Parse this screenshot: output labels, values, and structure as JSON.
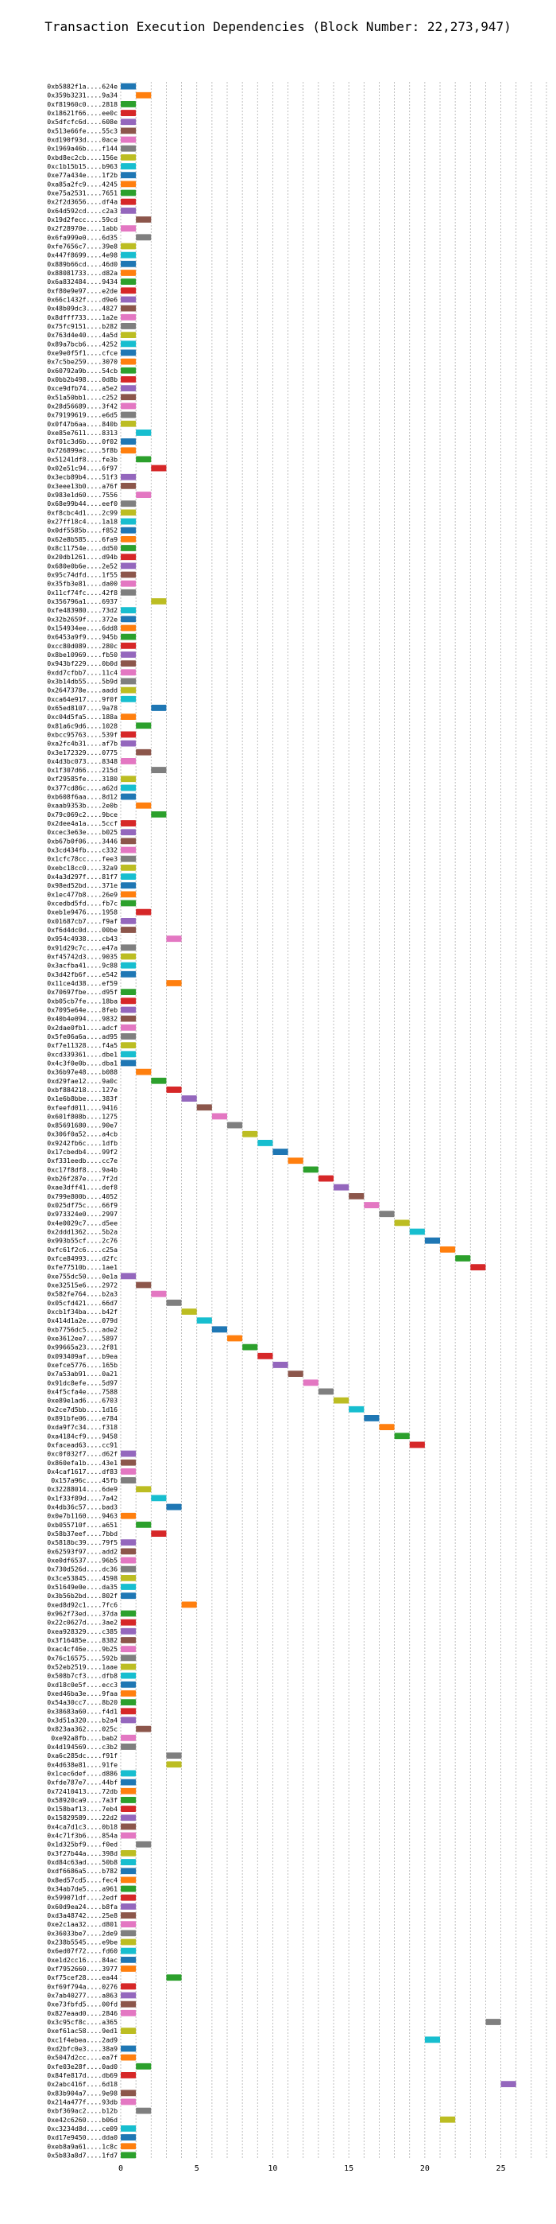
{
  "chart_data": {
    "type": "gantt",
    "title": "Transaction Execution Dependencies (Block Number: 22,273,947)",
    "xlabel": "",
    "ylabel": "",
    "xlim": [
      0,
      28
    ],
    "xticks": [
      0,
      5,
      10,
      15,
      20,
      25
    ],
    "grid": "vertical dashed",
    "bar_duration": 1,
    "rows": [
      [
        "0xb5882f1a....624e",
        0,
        "#1f77b4"
      ],
      [
        "0x359b3231....9a34",
        1,
        "#ff7f0e"
      ],
      [
        "0xf81960c0....2818",
        0,
        "#2ca02c"
      ],
      [
        "0x18621f66....ee0c",
        0,
        "#d62728"
      ],
      [
        "0x5dfcfc6d....608e",
        0,
        "#9467bd"
      ],
      [
        "0x513e66fe....55c3",
        0,
        "#8c564b"
      ],
      [
        "0xd190f93d....0ace",
        0,
        "#e377c2"
      ],
      [
        "0x1969a46b....f144",
        0,
        "#7f7f7f"
      ],
      [
        "0xbd8ec2cb....156e",
        0,
        "#bcbd22"
      ],
      [
        "0xc1b15b15....b963",
        0,
        "#17becf"
      ],
      [
        "0xe77a434e....1f2b",
        0,
        "#1f77b4"
      ],
      [
        "0xa85a2fc9....4245",
        0,
        "#ff7f0e"
      ],
      [
        "0xe75a2531....7651",
        0,
        "#2ca02c"
      ],
      [
        "0x2f2d3656....df4a",
        0,
        "#d62728"
      ],
      [
        "0x64d592cd....c2a3",
        0,
        "#9467bd"
      ],
      [
        "0x19d2fecc....59cd",
        1,
        "#8c564b"
      ],
      [
        "0x2f28970e....1abb",
        0,
        "#e377c2"
      ],
      [
        "0x6fa999e0....6d35",
        1,
        "#7f7f7f"
      ],
      [
        "0xfe7656c7....39e8",
        0,
        "#bcbd22"
      ],
      [
        "0x447f8699....4e98",
        0,
        "#17becf"
      ],
      [
        "0x889b66cd....46d0",
        0,
        "#1f77b4"
      ],
      [
        "0x88081733....d82a",
        0,
        "#ff7f0e"
      ],
      [
        "0x6a832484....9434",
        0,
        "#2ca02c"
      ],
      [
        "0xf80e9e97....e2de",
        0,
        "#d62728"
      ],
      [
        "0x66c1432f....d9e6",
        0,
        "#9467bd"
      ],
      [
        "0x48b09dc3....4827",
        0,
        "#8c564b"
      ],
      [
        "0x8dfff733....1a2e",
        0,
        "#e377c2"
      ],
      [
        "0x75fc9151....b282",
        0,
        "#7f7f7f"
      ],
      [
        "0x763d4e40....4a5d",
        0,
        "#bcbd22"
      ],
      [
        "0x89a7bcb6....4252",
        0,
        "#17becf"
      ],
      [
        "0xe9e0f5f1....cfce",
        0,
        "#1f77b4"
      ],
      [
        "0x7c5be259....3070",
        0,
        "#ff7f0e"
      ],
      [
        "0x60792a9b....54cb",
        0,
        "#2ca02c"
      ],
      [
        "0x0bb2b498....0d8b",
        0,
        "#d62728"
      ],
      [
        "0xce9dfb74....a5e2",
        0,
        "#9467bd"
      ],
      [
        "0x51a50bb1....c252",
        0,
        "#8c564b"
      ],
      [
        "0x28d56689....3f42",
        0,
        "#e377c2"
      ],
      [
        "0x79199619....e6d5",
        0,
        "#7f7f7f"
      ],
      [
        "0x0f47b6aa....840b",
        0,
        "#bcbd22"
      ],
      [
        "0xe85e7611....8313",
        1,
        "#17becf"
      ],
      [
        "0xf01c3d6b....0f02",
        0,
        "#1f77b4"
      ],
      [
        "0x726899ac....5f8b",
        0,
        "#ff7f0e"
      ],
      [
        "0x51241df8....fe3b",
        1,
        "#2ca02c"
      ],
      [
        "0x02e51c94....6f97",
        2,
        "#d62728"
      ],
      [
        "0x3ecb89b4....51f3",
        0,
        "#9467bd"
      ],
      [
        "0x3eee13b0....a76f",
        0,
        "#8c564b"
      ],
      [
        "0x983e1d60....7556",
        1,
        "#e377c2"
      ],
      [
        "0x68e99b44....eef0",
        0,
        "#7f7f7f"
      ],
      [
        "0xf8cbc4d1....2c99",
        0,
        "#bcbd22"
      ],
      [
        "0x27ff18c4....1a18",
        0,
        "#17becf"
      ],
      [
        "0x0df5585b....f852",
        0,
        "#1f77b4"
      ],
      [
        "0x62e8b585....6fa9",
        0,
        "#ff7f0e"
      ],
      [
        "0x8c11754e....dd50",
        0,
        "#2ca02c"
      ],
      [
        "0x20db1261....d94b",
        0,
        "#d62728"
      ],
      [
        "0x680e0b6e....2e52",
        0,
        "#9467bd"
      ],
      [
        "0x95c74dfd....1f55",
        0,
        "#8c564b"
      ],
      [
        "0x35fb3e81....da00",
        0,
        "#e377c2"
      ],
      [
        "0x11cf74fc....42f8",
        0,
        "#7f7f7f"
      ],
      [
        "0x356796a1....6937",
        2,
        "#bcbd22"
      ],
      [
        "0xfe483980....73d2",
        0,
        "#17becf"
      ],
      [
        "0x32b2659f....372e",
        0,
        "#1f77b4"
      ],
      [
        "0x154934ee....6dd8",
        0,
        "#ff7f0e"
      ],
      [
        "0x6453a9f9....945b",
        0,
        "#2ca02c"
      ],
      [
        "0xcc80d089....280c",
        0,
        "#d62728"
      ],
      [
        "0x8be10969....fb50",
        0,
        "#9467bd"
      ],
      [
        "0x943bf229....0b0d",
        0,
        "#8c564b"
      ],
      [
        "0xdd7cfbb7....11c4",
        0,
        "#e377c2"
      ],
      [
        "0x3b14db55....5b9d",
        0,
        "#7f7f7f"
      ],
      [
        "0x2647378e....aadd",
        0,
        "#bcbd22"
      ],
      [
        "0xca64e917....9f0f",
        0,
        "#17becf"
      ],
      [
        "0x65ed8107....9a78",
        2,
        "#1f77b4"
      ],
      [
        "0xc04d5fa5....188a",
        0,
        "#ff7f0e"
      ],
      [
        "0x81a6c9d6....1028",
        1,
        "#2ca02c"
      ],
      [
        "0xbcc95763....539f",
        0,
        "#d62728"
      ],
      [
        "0xa2fc4b31....af7b",
        0,
        "#9467bd"
      ],
      [
        "0x3e172329....0775",
        1,
        "#8c564b"
      ],
      [
        "0x4d3bc073....8348",
        0,
        "#e377c2"
      ],
      [
        "0x1f307d66....215d",
        2,
        "#7f7f7f"
      ],
      [
        "0xf29585fe....3180",
        0,
        "#bcbd22"
      ],
      [
        "0x377cd86c....a62d",
        0,
        "#17becf"
      ],
      [
        "0xb608f6aa....8d12",
        0,
        "#1f77b4"
      ],
      [
        "0xaab9353b....2e0b",
        1,
        "#ff7f0e"
      ],
      [
        "0x79c069c2....9bce",
        2,
        "#2ca02c"
      ],
      [
        "0x2dee4a1a....5ccf",
        0,
        "#d62728"
      ],
      [
        "0xcec3e63e....b025",
        0,
        "#9467bd"
      ],
      [
        "0xb67b0f06....3446",
        0,
        "#8c564b"
      ],
      [
        "0x3cd434fb....c332",
        0,
        "#e377c2"
      ],
      [
        "0x1cfc78cc....fee3",
        0,
        "#7f7f7f"
      ],
      [
        "0xebc18cc0....32a9",
        0,
        "#bcbd22"
      ],
      [
        "0x4a3d297f....81f7",
        0,
        "#17becf"
      ],
      [
        "0x98ed52bd....371e",
        0,
        "#1f77b4"
      ],
      [
        "0x1ec477b8....26e9",
        0,
        "#ff7f0e"
      ],
      [
        "0xcedbd5fd....fb7c",
        0,
        "#2ca02c"
      ],
      [
        "0xeb1e9476....1958",
        1,
        "#d62728"
      ],
      [
        "0x01687cb7....f9af",
        0,
        "#9467bd"
      ],
      [
        "0xf6d4dc0d....00be",
        0,
        "#8c564b"
      ],
      [
        "0x954c4938....cb43",
        3,
        "#e377c2"
      ],
      [
        "0x91d29c7c....e47a",
        0,
        "#7f7f7f"
      ],
      [
        "0xf45742d3....9035",
        0,
        "#bcbd22"
      ],
      [
        "0x3acfba41....9c88",
        0,
        "#17becf"
      ],
      [
        "0x3d42fb6f....e542",
        0,
        "#1f77b4"
      ],
      [
        "0x11ce4d38....ef59",
        3,
        "#ff7f0e"
      ],
      [
        "0x70697fbe....d95f",
        0,
        "#2ca02c"
      ],
      [
        "0xb05cb7fe....18ba",
        0,
        "#d62728"
      ],
      [
        "0x7095e64e....8feb",
        0,
        "#9467bd"
      ],
      [
        "0x40b4e094....9832",
        0,
        "#8c564b"
      ],
      [
        "0x2dae0fb1....adcf",
        0,
        "#e377c2"
      ],
      [
        "0x5fe06a6a....ad95",
        0,
        "#7f7f7f"
      ],
      [
        "0xf7e11328....f4a5",
        0,
        "#bcbd22"
      ],
      [
        "0xcd339361....dbe1",
        0,
        "#17becf"
      ],
      [
        "0x4c3f0e0b....dba1",
        0,
        "#1f77b4"
      ],
      [
        "0x36b97e48....b088",
        1,
        "#ff7f0e"
      ],
      [
        "0xd29fae12....9a0c",
        2,
        "#2ca02c"
      ],
      [
        "0xbf884218....127e",
        3,
        "#d62728"
      ],
      [
        "0x1e6b8bbe....383f",
        4,
        "#9467bd"
      ],
      [
        "0xfeefd011....9416",
        5,
        "#8c564b"
      ],
      [
        "0x601f808b....1275",
        6,
        "#e377c2"
      ],
      [
        "0x85691680....90e7",
        7,
        "#7f7f7f"
      ],
      [
        "0x306f0a52....a4cb",
        8,
        "#bcbd22"
      ],
      [
        "0x9242fb6c....1dfb",
        9,
        "#17becf"
      ],
      [
        "0x17cbedb4....99f2",
        10,
        "#1f77b4"
      ],
      [
        "0xf331eedb....cc7e",
        11,
        "#ff7f0e"
      ],
      [
        "0xc17f8df8....9a4b",
        12,
        "#2ca02c"
      ],
      [
        "0xb26f287e....7f2d",
        13,
        "#d62728"
      ],
      [
        "0xae3dff41....def8",
        14,
        "#9467bd"
      ],
      [
        "0x799e800b....4052",
        15,
        "#8c564b"
      ],
      [
        "0x025df75c....66f9",
        16,
        "#e377c2"
      ],
      [
        "0x973324e0....2997",
        17,
        "#7f7f7f"
      ],
      [
        "0x4e0029c7....d5ee",
        18,
        "#bcbd22"
      ],
      [
        "0x2ddd1362....5b2a",
        19,
        "#17becf"
      ],
      [
        "0x993b55cf....2c76",
        20,
        "#1f77b4"
      ],
      [
        "0xfc61f2c6....c25a",
        21,
        "#ff7f0e"
      ],
      [
        "0xfce84993....d2fc",
        22,
        "#2ca02c"
      ],
      [
        "0xfe77510b....1ae1",
        23,
        "#d62728"
      ],
      [
        "0xe755dc50....0e1a",
        0,
        "#9467bd"
      ],
      [
        "0xe32515e6....2972",
        1,
        "#8c564b"
      ],
      [
        "0x582fe764....b2a3",
        2,
        "#e377c2"
      ],
      [
        "0x05cfd421....66d7",
        3,
        "#7f7f7f"
      ],
      [
        "0xcb1f34ba....b42f",
        4,
        "#bcbd22"
      ],
      [
        "0x414d1a2e....079d",
        5,
        "#17becf"
      ],
      [
        "0xb7756dc5....ade2",
        6,
        "#1f77b4"
      ],
      [
        "0xe3612ee7....5897",
        7,
        "#ff7f0e"
      ],
      [
        "0x99665a23....2f81",
        8,
        "#2ca02c"
      ],
      [
        "0x093409af....b9ea",
        9,
        "#d62728"
      ],
      [
        "0xefce5776....165b",
        10,
        "#9467bd"
      ],
      [
        "0x7a53ab91....0a21",
        11,
        "#8c564b"
      ],
      [
        "0x91dc8efe....5d97",
        12,
        "#e377c2"
      ],
      [
        "0x4f5cfa4e....7588",
        13,
        "#7f7f7f"
      ],
      [
        "0xe89e1ad6....6703",
        14,
        "#bcbd22"
      ],
      [
        "0x2ce7d5bb....1d16",
        15,
        "#17becf"
      ],
      [
        "0x891bfe06....e784",
        16,
        "#1f77b4"
      ],
      [
        "0xda9f7c34....f318",
        17,
        "#ff7f0e"
      ],
      [
        "0xa4184cf9....9458",
        18,
        "#2ca02c"
      ],
      [
        "0xfacead63....cc91",
        19,
        "#d62728"
      ],
      [
        "0xc0f032f7....d62f",
        0,
        "#9467bd"
      ],
      [
        "0x860efa1b....43e1",
        0,
        "#8c564b"
      ],
      [
        "0x4caf1617....df83",
        0,
        "#e377c2"
      ],
      [
        "0x157a96c....45fb",
        0,
        "#7f7f7f"
      ],
      [
        "0x32288014....6de9",
        1,
        "#bcbd22"
      ],
      [
        "0x1f33f89d....7a42",
        2,
        "#17becf"
      ],
      [
        "0x4db36c57....bad3",
        3,
        "#1f77b4"
      ],
      [
        "0x0e7b1160....9463",
        0,
        "#ff7f0e"
      ],
      [
        "0xb055710f....a651",
        1,
        "#2ca02c"
      ],
      [
        "0x58b37eef....7bbd",
        2,
        "#d62728"
      ],
      [
        "0x5818bc39....79f5",
        0,
        "#9467bd"
      ],
      [
        "0x62593f97....add2",
        0,
        "#8c564b"
      ],
      [
        "0xe0df6537....96b5",
        0,
        "#e377c2"
      ],
      [
        "0x730d526d....dc36",
        0,
        "#7f7f7f"
      ],
      [
        "0x3ce53845....4598",
        0,
        "#bcbd22"
      ],
      [
        "0x51649e0e....da35",
        0,
        "#17becf"
      ],
      [
        "0x3b56b2bd....802f",
        0,
        "#1f77b4"
      ],
      [
        "0xed8d92c1....7fc6",
        4,
        "#ff7f0e"
      ],
      [
        "0x962f73ed....37da",
        0,
        "#2ca02c"
      ],
      [
        "0x22c0627d....3ae2",
        0,
        "#d62728"
      ],
      [
        "0xea928329....c385",
        0,
        "#9467bd"
      ],
      [
        "0x3f16485e....8382",
        0,
        "#8c564b"
      ],
      [
        "0xac4cf46e....9b25",
        0,
        "#e377c2"
      ],
      [
        "0x76c16575....592b",
        0,
        "#7f7f7f"
      ],
      [
        "0x52eb2519....1aae",
        0,
        "#bcbd22"
      ],
      [
        "0x508b7cf3....dfb8",
        0,
        "#17becf"
      ],
      [
        "0xd18c0e5f....ecc3",
        0,
        "#1f77b4"
      ],
      [
        "0xed46ba3e....9faa",
        0,
        "#ff7f0e"
      ],
      [
        "0x54a30cc7....8b20",
        0,
        "#2ca02c"
      ],
      [
        "0x38683a60....f4d1",
        0,
        "#d62728"
      ],
      [
        "0x3d51a320....b2a4",
        0,
        "#9467bd"
      ],
      [
        "0x823aa362....025c",
        1,
        "#8c564b"
      ],
      [
        "0xe92a8fb....bab2",
        0,
        "#e377c2"
      ],
      [
        "0x4d194569....c3b2",
        0,
        "#7f7f7f"
      ],
      [
        "0xa6c285dc....f91f",
        3,
        "#7f7f7f"
      ],
      [
        "0x4d638e81....91fe",
        3,
        "#bcbd22"
      ],
      [
        "0x1cec6def....d886",
        0,
        "#17becf"
      ],
      [
        "0xfde787e7....44bf",
        0,
        "#1f77b4"
      ],
      [
        "0x72410413....72db",
        0,
        "#ff7f0e"
      ],
      [
        "0x58920ca9....7a3f",
        0,
        "#2ca02c"
      ],
      [
        "0x158baf13....7eb4",
        0,
        "#d62728"
      ],
      [
        "0x15829589....22d2",
        0,
        "#9467bd"
      ],
      [
        "0x4ca7d1c3....0b18",
        0,
        "#8c564b"
      ],
      [
        "0x4c71f3b6....854a",
        0,
        "#e377c2"
      ],
      [
        "0x1d325bf9....f0ed",
        1,
        "#7f7f7f"
      ],
      [
        "0x3f27b44a....398d",
        0,
        "#bcbd22"
      ],
      [
        "0xd84c63ad....50b8",
        0,
        "#17becf"
      ],
      [
        "0xdf6686a5....b782",
        0,
        "#1f77b4"
      ],
      [
        "0x8ed57cd5....fec4",
        0,
        "#ff7f0e"
      ],
      [
        "0x34ab7de5....a961",
        0,
        "#2ca02c"
      ],
      [
        "0x599071df....2edf",
        0,
        "#d62728"
      ],
      [
        "0x60d9ea24....b8fa",
        0,
        "#9467bd"
      ],
      [
        "0xd3a48742....25e8",
        0,
        "#8c564b"
      ],
      [
        "0xe2c1aa32....d801",
        0,
        "#e377c2"
      ],
      [
        "0x36033be7....2de9",
        0,
        "#7f7f7f"
      ],
      [
        "0x238b5545....e9be",
        0,
        "#bcbd22"
      ],
      [
        "0x6ed07f72....fd60",
        0,
        "#17becf"
      ],
      [
        "0xe1d2cc16....84ac",
        0,
        "#1f77b4"
      ],
      [
        "0xf7952660....3977",
        0,
        "#ff7f0e"
      ],
      [
        "0xf75cef28....ea44",
        3,
        "#2ca02c"
      ],
      [
        "0xf69f794a....0276",
        0,
        "#d62728"
      ],
      [
        "0x7ab40277....a863",
        0,
        "#9467bd"
      ],
      [
        "0xe73fbfd5....00fd",
        0,
        "#8c564b"
      ],
      [
        "0x827eaad0....2846",
        0,
        "#e377c2"
      ],
      [
        "0x3c95cf8c....a365",
        24,
        "#7f7f7f"
      ],
      [
        "0xef61ac58....9ed1",
        0,
        "#bcbd22"
      ],
      [
        "0xc1f4ebea....2ad9",
        20,
        "#17becf"
      ],
      [
        "0xd2bfc0e3....38a9",
        0,
        "#1f77b4"
      ],
      [
        "0x5047d2cc....ea7f",
        0,
        "#ff7f0e"
      ],
      [
        "0xfe03e28f....0ad0",
        1,
        "#2ca02c"
      ],
      [
        "0x84fe817d....db69",
        0,
        "#d62728"
      ],
      [
        "0x2abc416f....6d18",
        25,
        "#9467bd"
      ],
      [
        "0x83b904a7....9e98",
        0,
        "#8c564b"
      ],
      [
        "0x214a477f....93db",
        0,
        "#e377c2"
      ],
      [
        "0xbf369ac2....b12b",
        1,
        "#7f7f7f"
      ],
      [
        "0xe42c6260....b06d",
        21,
        "#bcbd22"
      ],
      [
        "0xc3234d8d....ce09",
        0,
        "#17becf"
      ],
      [
        "0xd17e9450....dda0",
        0,
        "#1f77b4"
      ],
      [
        "0xeb8a9a61....1c8c",
        0,
        "#ff7f0e"
      ],
      [
        "0x5b83a8d7....1fd7",
        0,
        "#2ca02c"
      ]
    ]
  }
}
